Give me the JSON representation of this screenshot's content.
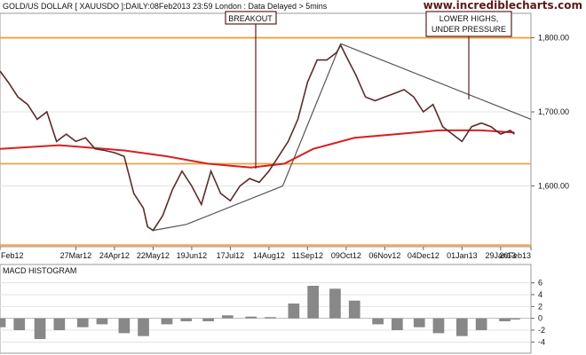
{
  "header": {
    "title": "GOLD/US DOLLAR [ XAUUSDO ]:DAILY:08Feb2013 23:59 London : Data Delayed > 5mins",
    "brand": "www.incrediblecharts.com"
  },
  "colors": {
    "price_line": "#5b2b2b",
    "moving_average": "#d62020",
    "support_resistance": "#f0a040",
    "trendline": "#555555",
    "macd_bar": "#888888",
    "annotation_border": "#5a2020",
    "brand": "#5a1a1a",
    "grid": "#e3e3e3"
  },
  "annotations": {
    "breakout": "BREAKOUT",
    "lower_highs_1": "LOWER HIGHS,",
    "lower_highs_2": "UNDER PRESSURE"
  },
  "chart_data": [
    {
      "type": "line",
      "title": "GOLD/US DOLLAR [ XAUUSDO ]:DAILY:08Feb2013 23:59 London : Data Delayed > 5mins",
      "date_range": [
        "2012-02-01",
        "2013-02-20"
      ],
      "x_tick_labels": [
        "Feb12",
        "27Mar12",
        "24Apr12",
        "22May12",
        "19Jun12",
        "17Jul12",
        "14Aug12",
        "11Sep12",
        "09Oct12",
        "06Nov12",
        "04Dec12",
        "01Jan13",
        "29Jan13",
        "20Feb13"
      ],
      "y_tick_labels": [
        "1,600.00",
        "1,700.00",
        "1,800.00"
      ],
      "ylim": [
        1518,
        1833
      ],
      "grid": true,
      "series": [
        {
          "x": [
            "2012-02-01",
            "2012-02-07",
            "2012-02-14",
            "2012-02-21",
            "2012-02-28",
            "2012-03-06",
            "2012-03-13",
            "2012-03-20",
            "2012-03-27",
            "2012-04-03",
            "2012-04-10",
            "2012-04-17",
            "2012-04-24",
            "2012-05-01",
            "2012-05-08",
            "2012-05-15",
            "2012-05-18",
            "2012-05-22",
            "2012-05-29",
            "2012-06-05",
            "2012-06-12",
            "2012-06-19",
            "2012-06-26",
            "2012-07-03",
            "2012-07-10",
            "2012-07-17",
            "2012-07-24",
            "2012-07-31",
            "2012-08-07",
            "2012-08-14",
            "2012-08-21",
            "2012-08-28",
            "2012-09-04",
            "2012-09-11",
            "2012-09-18",
            "2012-09-25",
            "2012-10-02",
            "2012-10-05",
            "2012-10-09",
            "2012-10-16",
            "2012-10-23",
            "2012-10-30",
            "2012-11-06",
            "2012-11-13",
            "2012-11-20",
            "2012-11-27",
            "2012-12-04",
            "2012-12-11",
            "2012-12-18",
            "2012-12-25",
            "2013-01-01",
            "2013-01-08",
            "2013-01-15",
            "2013-01-22",
            "2013-01-29",
            "2013-02-05",
            "2013-02-08"
          ],
          "values": [
            1755,
            1740,
            1720,
            1710,
            1690,
            1700,
            1660,
            1670,
            1660,
            1665,
            1650,
            1648,
            1645,
            1640,
            1590,
            1570,
            1545,
            1540,
            1560,
            1595,
            1620,
            1600,
            1575,
            1620,
            1590,
            1580,
            1600,
            1610,
            1605,
            1620,
            1640,
            1660,
            1690,
            1740,
            1770,
            1770,
            1780,
            1790,
            1775,
            1750,
            1720,
            1715,
            1720,
            1725,
            1730,
            1720,
            1700,
            1710,
            1680,
            1670,
            1660,
            1680,
            1685,
            1680,
            1670,
            1675,
            1670
          ]
        },
        {
          "x": [
            "2012-02-01",
            "2012-03-15",
            "2012-05-01",
            "2012-06-01",
            "2012-07-01",
            "2012-08-01",
            "2012-08-25",
            "2012-09-15",
            "2012-10-15",
            "2012-11-15",
            "2012-12-15",
            "2013-01-15",
            "2013-02-08"
          ],
          "values": [
            1650,
            1655,
            1648,
            1640,
            1630,
            1625,
            1630,
            1650,
            1665,
            1670,
            1675,
            1675,
            1672
          ]
        }
      ],
      "reference_lines": [
        1800,
        1630,
        1520
      ],
      "trendlines": [
        {
          "from": [
            "2012-05-22",
            1540
          ],
          "to": [
            "2012-06-15",
            1548
          ]
        },
        {
          "from": [
            "2012-06-15",
            1548
          ],
          "to": [
            "2012-08-24",
            1600
          ]
        },
        {
          "from": [
            "2012-08-24",
            1600
          ],
          "to": [
            "2012-10-05",
            1792
          ]
        },
        {
          "from": [
            "2012-10-05",
            1792
          ],
          "to": [
            "2013-02-20",
            1690
          ]
        }
      ]
    },
    {
      "type": "bar",
      "title": "MACD HISTOGRAM",
      "date_range": [
        "2012-02-01",
        "2013-02-20"
      ],
      "y_tick_labels": [
        "6",
        "4",
        "2",
        "0",
        "-2",
        "-4"
      ],
      "ylim": [
        -5,
        7
      ],
      "x": [
        "2012-02-01",
        "2012-02-15",
        "2012-03-01",
        "2012-03-15",
        "2012-04-01",
        "2012-04-15",
        "2012-05-01",
        "2012-05-15",
        "2012-06-01",
        "2012-06-15",
        "2012-07-01",
        "2012-07-15",
        "2012-08-01",
        "2012-08-15",
        "2012-09-01",
        "2012-09-15",
        "2012-10-01",
        "2012-10-15",
        "2012-11-01",
        "2012-11-15",
        "2012-12-01",
        "2012-12-15",
        "2013-01-01",
        "2013-01-15",
        "2013-02-01",
        "2013-02-08"
      ],
      "values": [
        -1.5,
        -2.0,
        -3.5,
        -2.0,
        -1.5,
        -1.0,
        -2.5,
        -3.0,
        -1.0,
        -0.5,
        -0.5,
        0.5,
        0.3,
        0.2,
        2.5,
        5.5,
        5.0,
        3.0,
        -1.0,
        -2.0,
        -1.5,
        -2.5,
        -3.0,
        -2.0,
        -0.5,
        -0.2
      ]
    }
  ]
}
